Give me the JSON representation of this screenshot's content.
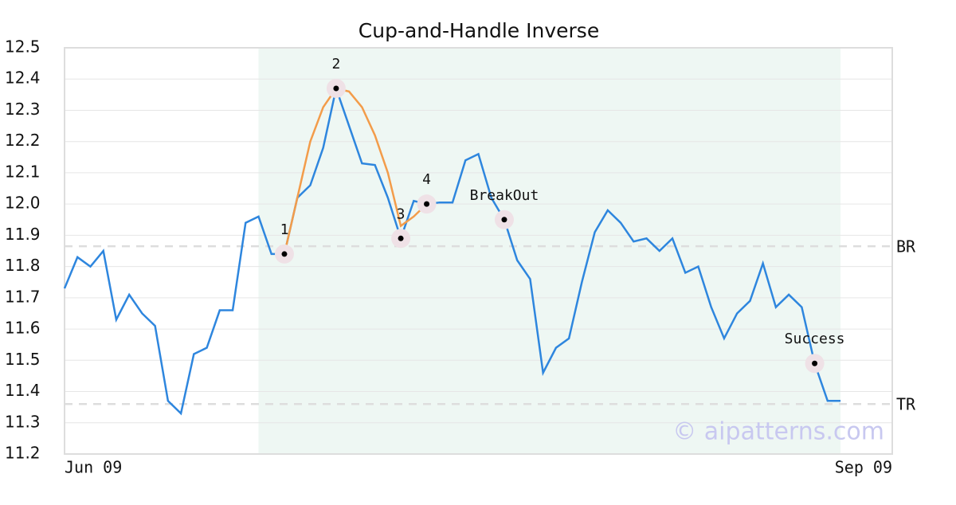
{
  "chart_data": {
    "type": "line",
    "title": "Cup-and-Handle Inverse",
    "x": [
      0,
      1,
      2,
      3,
      4,
      5,
      6,
      7,
      8,
      9,
      10,
      11,
      12,
      13,
      14,
      15,
      16,
      17,
      18,
      19,
      20,
      21,
      22,
      23,
      24,
      25,
      26,
      27,
      28,
      29,
      30,
      31,
      32,
      33,
      34,
      35,
      36,
      37,
      38,
      39,
      40,
      41,
      42,
      43,
      44,
      45,
      46,
      47,
      48,
      49,
      50,
      51,
      52,
      53,
      54,
      55,
      56,
      57,
      58,
      59,
      60
    ],
    "series": [
      {
        "name": "price",
        "color": "#2e86de",
        "values": [
          11.73,
          11.83,
          11.8,
          11.85,
          11.63,
          11.71,
          11.65,
          11.61,
          11.37,
          11.33,
          11.52,
          11.54,
          11.66,
          11.66,
          11.94,
          11.96,
          11.84,
          11.84,
          12.02,
          12.06,
          12.18,
          12.37,
          12.25,
          12.13,
          12.125,
          12.02,
          11.89,
          12.01,
          12.0,
          12.005,
          12.005,
          12.14,
          12.16,
          12.02,
          11.95,
          11.82,
          11.76,
          11.46,
          11.54,
          11.57,
          11.75,
          11.91,
          11.98,
          11.94,
          11.88,
          11.89,
          11.85,
          11.89,
          11.78,
          11.8,
          11.67,
          11.57,
          11.65,
          11.69,
          11.81,
          11.67,
          11.71,
          11.67,
          11.49,
          11.37,
          11.37
        ]
      },
      {
        "name": "pattern",
        "color": "#f39c4a",
        "x": [
          17,
          18,
          19,
          20,
          21,
          22,
          23,
          24,
          25,
          26,
          27,
          28
        ],
        "values": [
          11.84,
          12.02,
          12.2,
          12.31,
          12.37,
          12.36,
          12.31,
          12.22,
          12.1,
          11.93,
          11.96,
          12.0
        ]
      }
    ],
    "points": [
      {
        "label": "1",
        "x": 17,
        "value": 11.84
      },
      {
        "label": "2",
        "x": 21,
        "value": 12.37
      },
      {
        "label": "3",
        "x": 26,
        "value": 11.89
      },
      {
        "label": "4",
        "x": 28,
        "value": 12.0
      },
      {
        "label": "BreakOut",
        "x": 34,
        "value": 11.95
      },
      {
        "label": "Success",
        "x": 58,
        "value": 11.49
      }
    ],
    "levels": [
      {
        "label": "BR",
        "value": 11.865
      },
      {
        "label": "TR",
        "value": 11.36
      }
    ],
    "shade": [
      15,
      60
    ],
    "shade_color": "#eef7f3",
    "watermark": "© aipatterns.com",
    "xlim": [
      0,
      64
    ],
    "xticks": [
      {
        "value": 0,
        "label": "Jun 09"
      },
      {
        "value": 64,
        "label": "Sep 09"
      }
    ],
    "ylim": [
      11.2,
      12.5
    ],
    "yticks": [
      11.2,
      11.3,
      11.4,
      11.5,
      11.6,
      11.7,
      11.8,
      11.9,
      {
        "value": 12,
        "label": "12.0"
      },
      12.1,
      12.2,
      12.3,
      12.4,
      12.5
    ],
    "grid": true
  }
}
